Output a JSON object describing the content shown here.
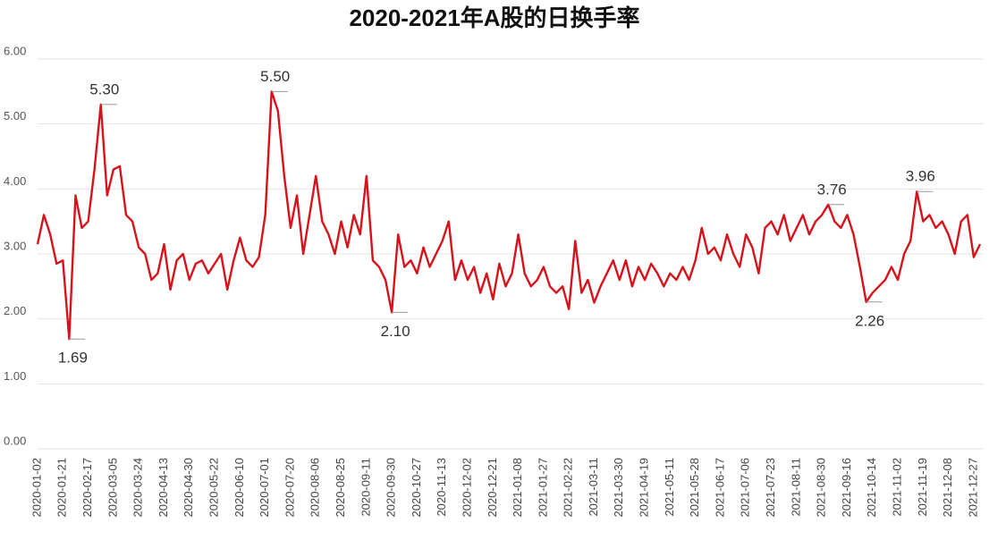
{
  "chart_data": {
    "type": "line",
    "title": "2020-2021年A股的日换手率",
    "categories": [
      "2020-01-02",
      null,
      null,
      null,
      "2020-01-21",
      null,
      null,
      null,
      "2020-02-17",
      null,
      null,
      null,
      "2020-03-05",
      null,
      null,
      null,
      "2020-03-24",
      null,
      null,
      null,
      "2020-04-13",
      null,
      null,
      null,
      "2020-04-30",
      null,
      null,
      null,
      "2020-05-22",
      null,
      null,
      null,
      "2020-06-10",
      null,
      null,
      null,
      "2020-07-01",
      null,
      null,
      null,
      "2020-07-20",
      null,
      null,
      null,
      "2020-08-06",
      null,
      null,
      null,
      "2020-08-25",
      null,
      null,
      null,
      "2020-09-11",
      null,
      null,
      null,
      "2020-09-30",
      null,
      null,
      null,
      "2020-10-27",
      null,
      null,
      null,
      "2020-11-13",
      null,
      null,
      null,
      "2020-12-02",
      null,
      null,
      null,
      "2020-12-21",
      null,
      null,
      null,
      "2021-01-08",
      null,
      null,
      null,
      "2021-01-27",
      null,
      null,
      null,
      "2021-02-22",
      null,
      null,
      null,
      "2021-03-11",
      null,
      null,
      null,
      "2021-03-30",
      null,
      null,
      null,
      "2021-04-19",
      null,
      null,
      null,
      "2021-05-11",
      null,
      null,
      null,
      "2021-05-28",
      null,
      null,
      null,
      "2021-06-17",
      null,
      null,
      null,
      "2021-07-06",
      null,
      null,
      null,
      "2021-07-23",
      null,
      null,
      null,
      "2021-08-11",
      null,
      null,
      null,
      "2021-08-30",
      null,
      null,
      null,
      "2021-09-16",
      null,
      null,
      null,
      "2021-10-14",
      null,
      null,
      null,
      "2021-11-02",
      null,
      null,
      null,
      "2021-11-19",
      null,
      null,
      null,
      "2021-12-08",
      null,
      null,
      null,
      "2021-12-27",
      null
    ],
    "values": [
      3.15,
      3.6,
      3.3,
      2.85,
      2.9,
      1.69,
      3.9,
      3.4,
      3.5,
      4.3,
      5.3,
      3.9,
      4.3,
      4.35,
      3.6,
      3.5,
      3.1,
      3.0,
      2.6,
      2.7,
      3.15,
      2.45,
      2.9,
      3.0,
      2.6,
      2.85,
      2.9,
      2.7,
      2.85,
      3.0,
      2.45,
      2.9,
      3.25,
      2.9,
      2.8,
      2.95,
      3.6,
      5.5,
      5.2,
      4.2,
      3.4,
      3.9,
      3.0,
      3.6,
      4.2,
      3.5,
      3.3,
      3.0,
      3.5,
      3.1,
      3.6,
      3.3,
      4.2,
      2.9,
      2.8,
      2.6,
      2.1,
      3.3,
      2.8,
      2.9,
      2.7,
      3.1,
      2.8,
      3.0,
      3.2,
      3.5,
      2.6,
      2.9,
      2.6,
      2.8,
      2.4,
      2.7,
      2.3,
      2.85,
      2.5,
      2.7,
      3.3,
      2.7,
      2.5,
      2.6,
      2.8,
      2.5,
      2.4,
      2.5,
      2.15,
      3.2,
      2.4,
      2.6,
      2.25,
      2.5,
      2.7,
      2.9,
      2.6,
      2.9,
      2.5,
      2.8,
      2.6,
      2.85,
      2.7,
      2.5,
      2.7,
      2.6,
      2.8,
      2.6,
      2.9,
      3.4,
      3.0,
      3.1,
      2.9,
      3.3,
      3.0,
      2.8,
      3.3,
      3.1,
      2.7,
      3.4,
      3.5,
      3.3,
      3.6,
      3.2,
      3.4,
      3.6,
      3.3,
      3.5,
      3.6,
      3.76,
      3.5,
      3.4,
      3.6,
      3.3,
      2.8,
      2.26,
      2.4,
      2.5,
      2.6,
      2.8,
      2.6,
      3.0,
      3.2,
      3.96,
      3.5,
      3.6,
      3.4,
      3.5,
      3.3,
      3.0,
      3.5,
      3.6,
      2.95,
      3.15
    ],
    "value_labels": [
      null,
      null,
      null,
      null,
      null,
      "1.69",
      null,
      null,
      null,
      null,
      "5.30",
      null,
      null,
      null,
      null,
      null,
      null,
      null,
      null,
      null,
      null,
      null,
      null,
      null,
      null,
      null,
      null,
      null,
      null,
      null,
      null,
      null,
      null,
      null,
      null,
      null,
      null,
      "5.50",
      null,
      null,
      null,
      null,
      null,
      null,
      null,
      null,
      null,
      null,
      null,
      null,
      null,
      null,
      null,
      null,
      null,
      null,
      "2.10",
      null,
      null,
      null,
      null,
      null,
      null,
      null,
      null,
      null,
      null,
      null,
      null,
      null,
      null,
      null,
      null,
      null,
      null,
      null,
      null,
      null,
      null,
      null,
      null,
      null,
      null,
      null,
      null,
      null,
      null,
      null,
      null,
      null,
      null,
      null,
      null,
      null,
      null,
      null,
      null,
      null,
      null,
      null,
      null,
      null,
      null,
      null,
      null,
      null,
      null,
      null,
      null,
      null,
      null,
      null,
      null,
      null,
      null,
      null,
      null,
      null,
      null,
      null,
      null,
      null,
      null,
      null,
      null,
      "3.76",
      null,
      null,
      null,
      null,
      null,
      "2.26",
      null,
      null,
      null,
      null,
      null,
      null,
      null,
      "3.96",
      null,
      null,
      null,
      null,
      null,
      null,
      null,
      null,
      null,
      null
    ],
    "color": "#d7121b",
    "ylim": [
      0,
      6
    ],
    "yticks": [
      {
        "value": 0,
        "label": "0.00"
      },
      {
        "value": 1,
        "label": "1.00"
      },
      {
        "value": 2,
        "label": "2.00"
      },
      {
        "value": 3,
        "label": "3.00"
      },
      {
        "value": 4,
        "label": "4.00"
      },
      {
        "value": 5,
        "label": "5.00"
      },
      {
        "value": 6,
        "label": "6.00"
      }
    ],
    "grid": true
  }
}
